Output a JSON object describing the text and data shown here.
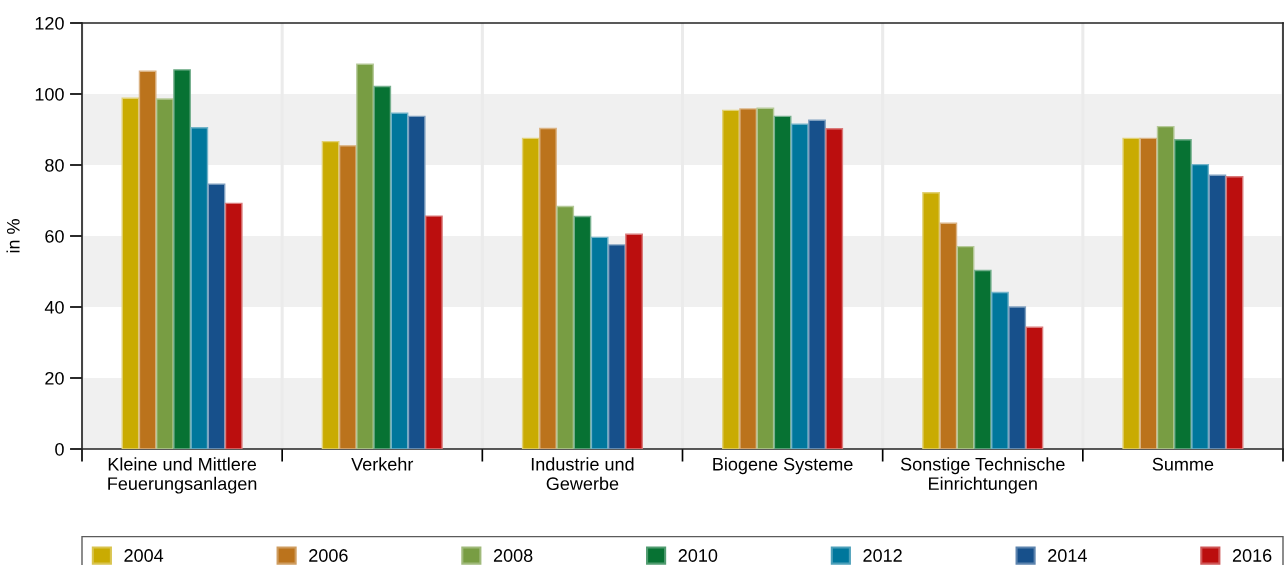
{
  "chart_data": {
    "type": "bar",
    "ylabel": "in %",
    "categories": [
      "Kleine und Mittlere\nFeuerungsanlagen",
      "Verkehr",
      "Industrie und\nGewerbe",
      "Biogene Systeme",
      "Sonstige Technische\nEinrichtungen",
      "Summe"
    ],
    "series": [
      {
        "name": "2004",
        "color": "#c9ab02",
        "values": [
          98.8,
          86.6,
          87.5,
          95.4,
          72.2,
          87.5
        ]
      },
      {
        "name": "2006",
        "color": "#bb731c",
        "values": [
          106.4,
          85.4,
          90.3,
          95.8,
          63.6,
          87.5
        ]
      },
      {
        "name": "2008",
        "color": "#789d43",
        "values": [
          98.6,
          108.4,
          68.3,
          96.0,
          57.0,
          90.8
        ]
      },
      {
        "name": "2010",
        "color": "#077233",
        "values": [
          106.8,
          102.1,
          65.5,
          93.7,
          50.3,
          87.1
        ]
      },
      {
        "name": "2012",
        "color": "#00779c",
        "values": [
          90.5,
          94.6,
          59.6,
          91.5,
          44.1,
          80.1
        ]
      },
      {
        "name": "2014",
        "color": "#17508b",
        "values": [
          74.6,
          93.7,
          57.5,
          92.6,
          40.0,
          77.1
        ]
      },
      {
        "name": "2016",
        "color": "#bb0e0e",
        "values": [
          69.2,
          65.6,
          60.5,
          90.2,
          34.3,
          76.7
        ]
      }
    ],
    "ylim": [
      0,
      120
    ],
    "yticks": [
      0,
      20,
      40,
      60,
      80,
      100,
      120
    ],
    "bands": [
      {
        "axis": "y",
        "from": 0,
        "to": 20,
        "color": "#f0f0f0"
      },
      {
        "axis": "y",
        "from": 40,
        "to": 60,
        "color": "#f0f0f0"
      },
      {
        "axis": "y",
        "from": 80,
        "to": 100,
        "color": "#f0f0f0"
      }
    ],
    "grid": "x",
    "legend": "bottom"
  }
}
